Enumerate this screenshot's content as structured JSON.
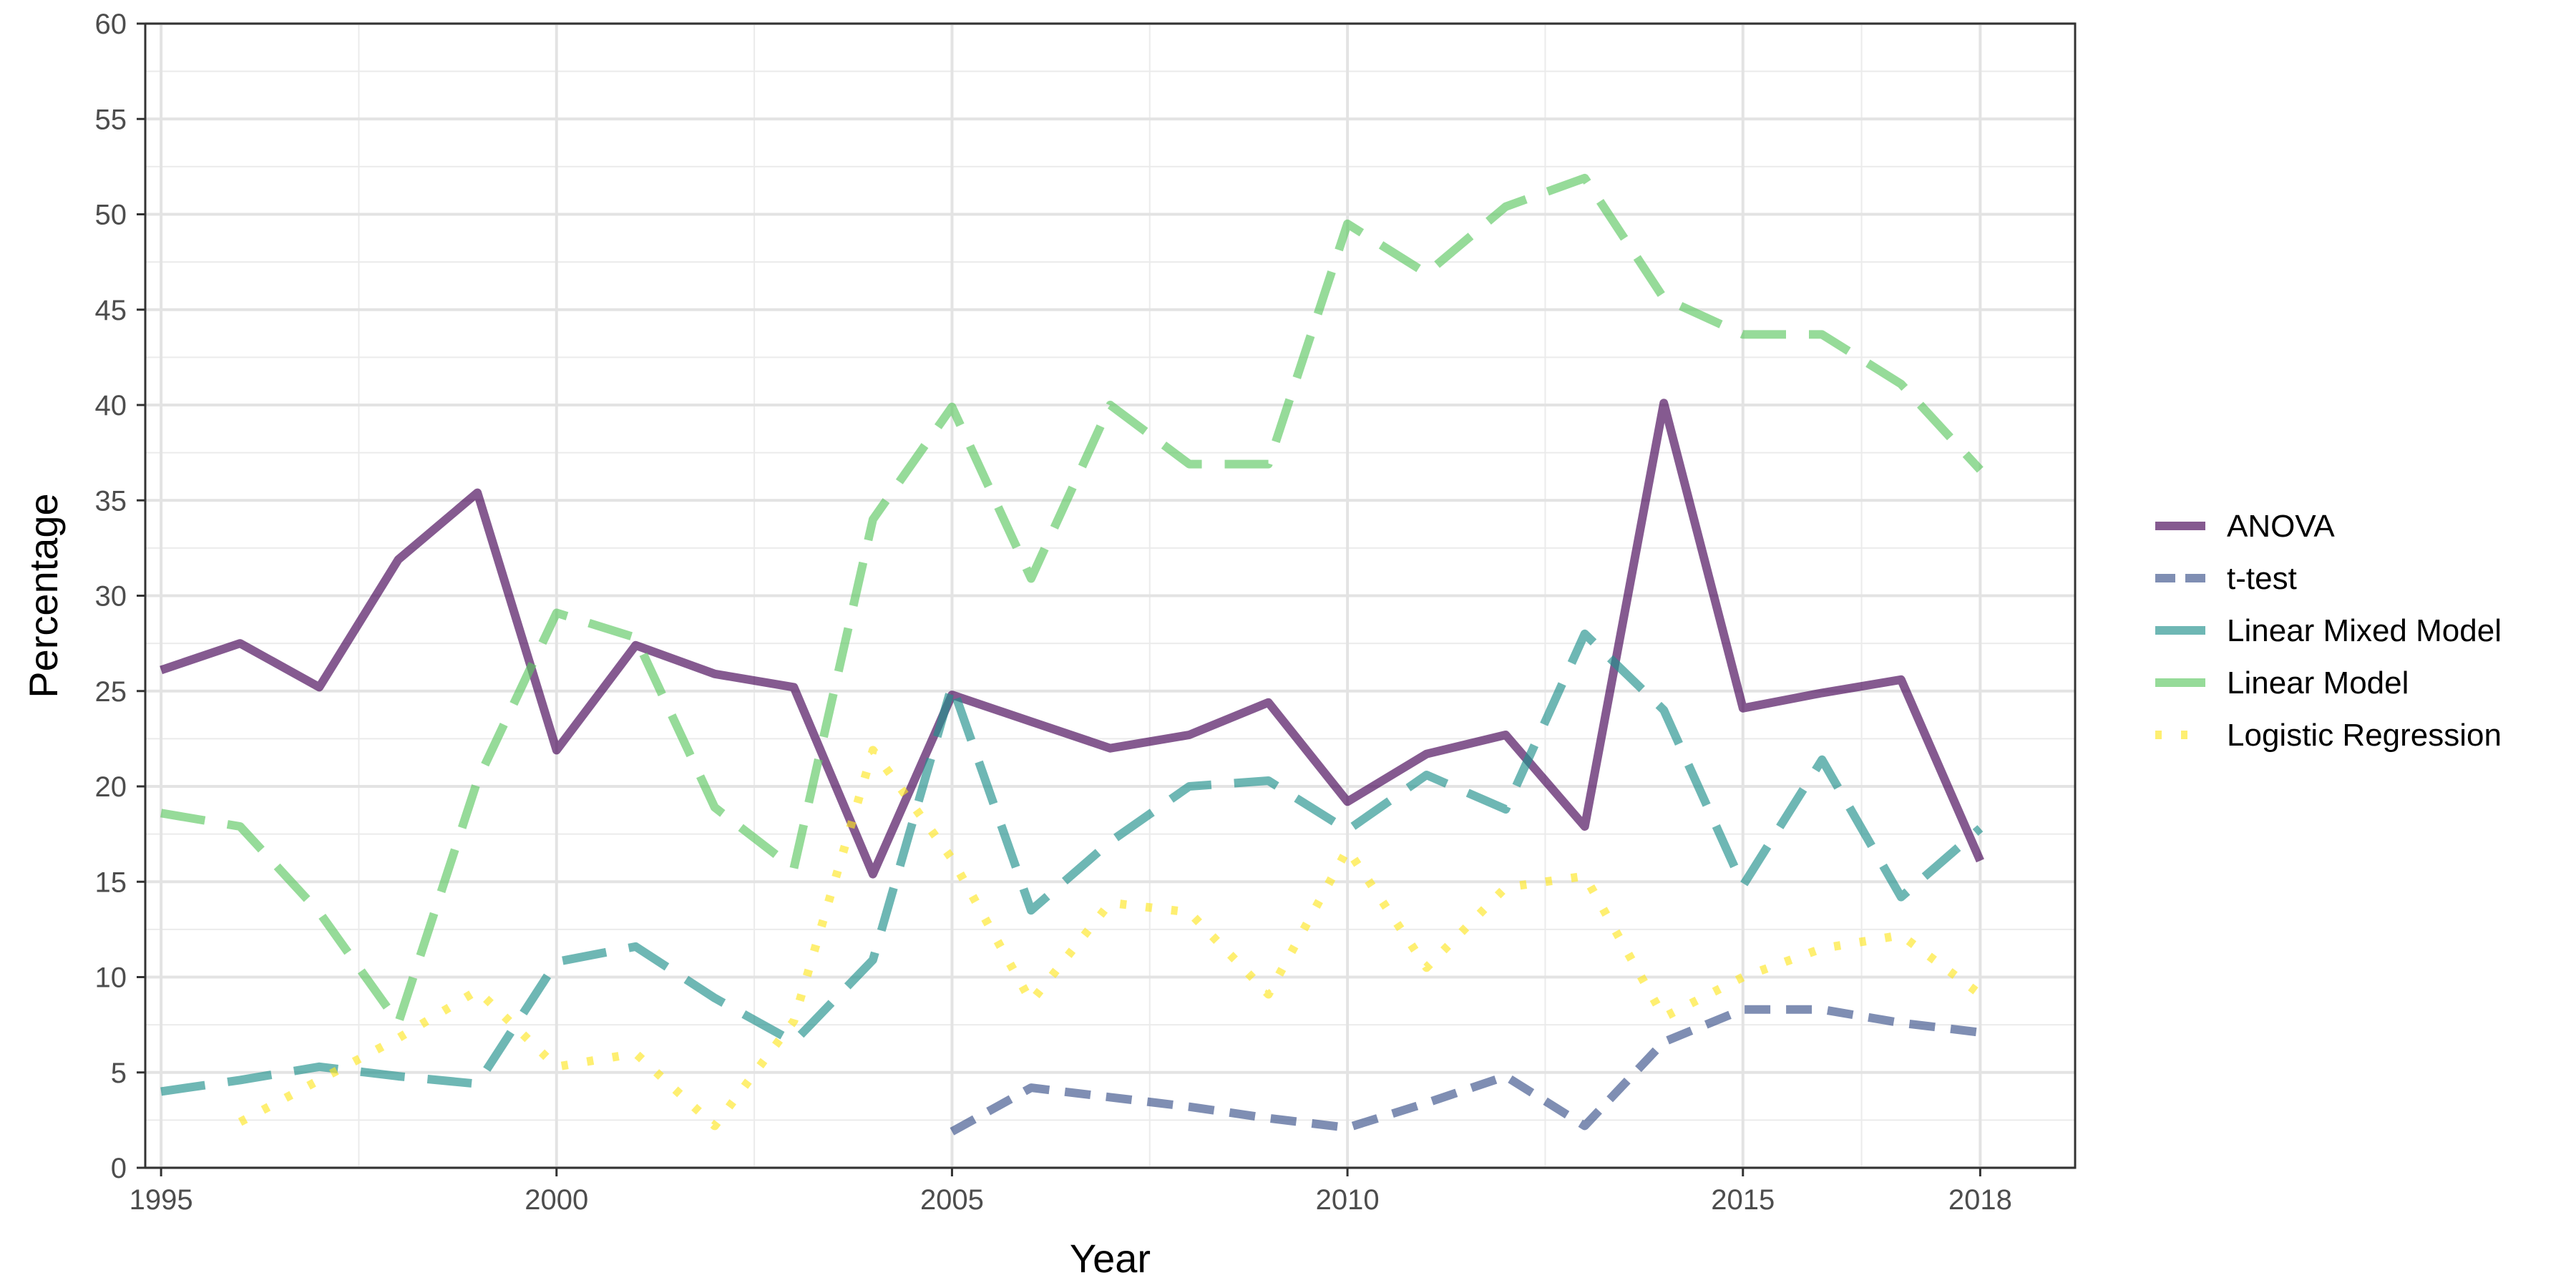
{
  "chart_data": {
    "type": "line",
    "xlabel": "Year",
    "ylabel": "Percentage",
    "xlim": [
      1994.8,
      2019.2
    ],
    "ylim": [
      0,
      60
    ],
    "x_ticks": [
      1995,
      2000,
      2005,
      2010,
      2015,
      2018
    ],
    "y_ticks": [
      0,
      5,
      10,
      15,
      20,
      25,
      30,
      35,
      40,
      45,
      50,
      55,
      60
    ],
    "grid": true,
    "legend_position": "right",
    "series": [
      {
        "name": "ANOVA",
        "color": "#440154",
        "line_style": "solid",
        "x": [
          1995,
          1996,
          1997,
          1998,
          1999,
          2000,
          2001,
          2002,
          2003,
          2004,
          2005,
          2006,
          2007,
          2008,
          2009,
          2010,
          2011,
          2012,
          2013,
          2014,
          2015,
          2016,
          2017,
          2018
        ],
        "values": [
          26.1,
          27.5,
          25.2,
          31.9,
          35.4,
          21.9,
          27.4,
          25.9,
          25.2,
          15.4,
          24.8,
          23.4,
          22.0,
          22.7,
          24.4,
          19.2,
          21.7,
          22.7,
          17.9,
          40.1,
          24.1,
          24.9,
          25.6,
          16.1
        ]
      },
      {
        "name": "t-test",
        "color": "#3b528b",
        "line_style": "dashed",
        "x": [
          2005,
          2006,
          2007,
          2008,
          2009,
          2010,
          2011,
          2012,
          2013,
          2014,
          2015,
          2016,
          2017,
          2018
        ],
        "values": [
          1.9,
          4.2,
          3.7,
          3.2,
          2.6,
          2.1,
          3.4,
          4.8,
          2.2,
          6.6,
          8.3,
          8.3,
          7.6,
          7.1
        ]
      },
      {
        "name": "Linear Mixed Model",
        "color": "#21908c",
        "line_style": "longdash",
        "x": [
          1995,
          1996,
          1997,
          1998,
          1999,
          2000,
          2001,
          2002,
          2003,
          2004,
          2005,
          2006,
          2007,
          2008,
          2009,
          2010,
          2011,
          2012,
          2013,
          2014,
          2015,
          2016,
          2017,
          2018
        ],
        "values": [
          4.0,
          4.6,
          5.3,
          4.8,
          4.4,
          10.8,
          11.6,
          8.9,
          6.6,
          10.9,
          25.3,
          13.5,
          17.1,
          20.0,
          20.3,
          17.7,
          20.6,
          18.8,
          28.0,
          24.0,
          14.8,
          21.4,
          14.2,
          17.8
        ]
      },
      {
        "name": "Linear Model",
        "color": "#5dc863",
        "line_style": "longdash",
        "x": [
          1995,
          1996,
          1997,
          1998,
          1999,
          2000,
          2001,
          2002,
          2003,
          2004,
          2005,
          2006,
          2007,
          2008,
          2009,
          2010,
          2011,
          2012,
          2013,
          2014,
          2015,
          2016,
          2017,
          2018
        ],
        "values": [
          18.6,
          17.9,
          13.4,
          7.6,
          20.3,
          29.1,
          27.8,
          18.9,
          15.7,
          34.0,
          39.9,
          30.9,
          40.0,
          36.9,
          36.9,
          49.5,
          46.9,
          50.4,
          51.9,
          45.6,
          43.7,
          43.7,
          41.1,
          36.6
        ]
      },
      {
        "name": "Logistic Regression",
        "color": "#fde725",
        "line_style": "dotted",
        "x": [
          1996,
          1997,
          1998,
          1999,
          2000,
          2001,
          2002,
          2003,
          2004,
          2005,
          2006,
          2007,
          2008,
          2009,
          2010,
          2011,
          2012,
          2013,
          2014,
          2015,
          2016,
          2017,
          2018
        ],
        "values": [
          2.4,
          4.6,
          6.8,
          9.3,
          5.3,
          6.0,
          2.2,
          7.7,
          21.9,
          16.2,
          8.7,
          13.9,
          13.4,
          9.1,
          16.7,
          10.5,
          14.7,
          15.3,
          7.9,
          10.0,
          11.5,
          12.2,
          9.1
        ]
      }
    ]
  }
}
